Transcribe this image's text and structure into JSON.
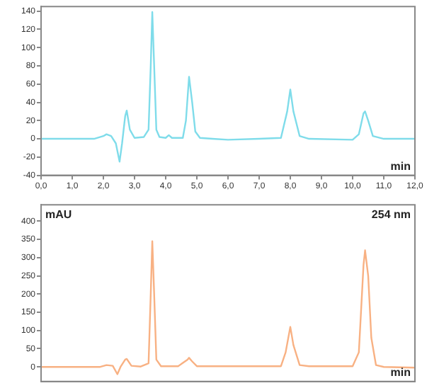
{
  "chart_data": [
    {
      "type": "line",
      "xlabel": "min",
      "xlim": [
        0,
        12
      ],
      "ylim": [
        -40,
        145
      ],
      "xticks": [
        {
          "value": 0,
          "label": "0,0"
        },
        {
          "value": 1,
          "label": "1,0"
        },
        {
          "value": 2,
          "label": "2,0"
        },
        {
          "value": 3,
          "label": "3,0"
        },
        {
          "value": 4,
          "label": "4,0"
        },
        {
          "value": 5,
          "label": "5,0"
        },
        {
          "value": 6,
          "label": "6,0"
        },
        {
          "value": 7,
          "label": "7,0"
        },
        {
          "value": 8,
          "label": "8,0"
        },
        {
          "value": 9,
          "label": "9,0"
        },
        {
          "value": 10,
          "label": "10,0"
        },
        {
          "value": 11,
          "label": "11,0"
        },
        {
          "value": 12,
          "label": "12,0"
        }
      ],
      "yticks": [
        -40,
        -20,
        0,
        20,
        40,
        60,
        80,
        100,
        120,
        140
      ],
      "grid": false,
      "legend": false,
      "marker": "none",
      "series": [
        {
          "color": "#7fdcea",
          "x": [
            0,
            1.7,
            2.0,
            2.1,
            2.25,
            2.4,
            2.52,
            2.6,
            2.7,
            2.75,
            2.85,
            3.0,
            3.3,
            3.45,
            3.52,
            3.57,
            3.63,
            3.7,
            3.8,
            4.0,
            4.1,
            4.2,
            4.55,
            4.65,
            4.75,
            4.85,
            4.95,
            5.1,
            5.5,
            6.0,
            7.0,
            7.7,
            7.9,
            8.0,
            8.1,
            8.3,
            8.6,
            10.0,
            10.2,
            10.35,
            10.4,
            10.5,
            10.65,
            11.0,
            12.0
          ],
          "values": [
            0,
            0,
            3,
            5,
            3,
            -5,
            -25,
            -5,
            25,
            31,
            10,
            1,
            2,
            10,
            80,
            139,
            80,
            10,
            2,
            1,
            4,
            1,
            1,
            20,
            68,
            40,
            8,
            1,
            0,
            -1,
            0,
            1,
            30,
            54,
            30,
            3,
            0,
            -1,
            5,
            28,
            30,
            20,
            3,
            0,
            0
          ]
        }
      ]
    },
    {
      "type": "line",
      "xlabel": "min",
      "ylabel": "mAU",
      "annotations": [
        "254 nm"
      ],
      "xlim": [
        0,
        12
      ],
      "ylim": [
        -40,
        445
      ],
      "yticks": [
        0,
        50,
        100,
        150,
        200,
        250,
        300,
        350,
        400
      ],
      "grid": false,
      "legend": false,
      "marker": "none",
      "tick_labels": "y",
      "series": [
        {
          "color": "#f8b183",
          "x": [
            0,
            1.9,
            2.1,
            2.3,
            2.45,
            2.55,
            2.7,
            2.75,
            2.9,
            3.2,
            3.45,
            3.52,
            3.57,
            3.63,
            3.7,
            3.85,
            4.4,
            4.7,
            4.75,
            4.85,
            5.0,
            7.7,
            7.85,
            8.0,
            8.1,
            8.3,
            8.6,
            10.0,
            10.2,
            10.35,
            10.4,
            10.5,
            10.6,
            10.75,
            11.0,
            12.0
          ],
          "values": [
            0,
            0,
            5,
            3,
            -20,
            0,
            20,
            22,
            3,
            1,
            10,
            200,
            345,
            200,
            20,
            2,
            2,
            20,
            25,
            15,
            2,
            2,
            40,
            110,
            60,
            5,
            2,
            2,
            40,
            280,
            320,
            250,
            80,
            5,
            0,
            -2
          ]
        }
      ]
    }
  ]
}
